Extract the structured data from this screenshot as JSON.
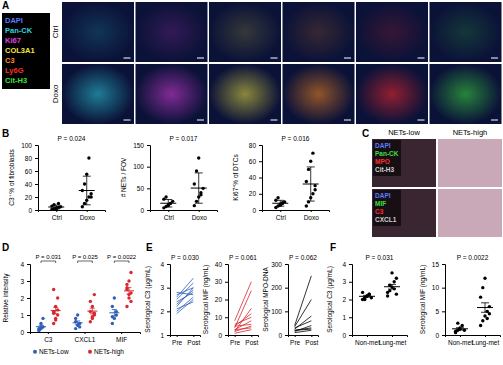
{
  "figure": {
    "panel_labels": [
      "A",
      "B",
      "C",
      "D",
      "E",
      "F"
    ],
    "panel_a": {
      "channels": [
        {
          "name": "DAPI",
          "color": "#5b7cff"
        },
        {
          "name": "Pan-CK",
          "color": "#2fd3e0"
        },
        {
          "name": "Ki67",
          "color": "#e040e0"
        },
        {
          "name": "COL3A1",
          "color": "#f2e640"
        },
        {
          "name": "C3",
          "color": "#ff8a1e"
        },
        {
          "name": "Ly6G",
          "color": "#ff2a2a"
        },
        {
          "name": "Cit-H3",
          "color": "#3de03d"
        }
      ],
      "rows": [
        "Ctrl",
        "Doxo"
      ]
    },
    "panel_c": {
      "columns": [
        "NETs-low",
        "NETs-high"
      ],
      "rows": [
        [
          {
            "name": "DAPI",
            "color": "#5b7cff"
          },
          {
            "name": "Pan-CK",
            "color": "#3de03d"
          },
          {
            "name": "MPO",
            "color": "#ff3030"
          },
          {
            "name": "Cit-H3",
            "color": "#d0d0d0"
          }
        ],
        [
          {
            "name": "DAPI",
            "color": "#5b7cff"
          },
          {
            "name": "MIF",
            "color": "#3de03d"
          },
          {
            "name": "C3",
            "color": "#ff3030"
          },
          {
            "name": "CXCL1",
            "color": "#d0d0d0"
          }
        ]
      ]
    }
  },
  "chart_data": [
    {
      "type": "dot",
      "ylabel": "C3⁺ % of fibroblasts",
      "categories": [
        "Ctrl",
        "Doxo"
      ],
      "values": [
        [
          1,
          2,
          3,
          4,
          5,
          6,
          8,
          2,
          10
        ],
        [
          5,
          10,
          15,
          20,
          25,
          30,
          40,
          55,
          80,
          20
        ]
      ],
      "means": [
        4.6,
        30
      ],
      "errors": [
        3,
        22
      ],
      "color": "#000000",
      "ylim": [
        0,
        100
      ],
      "yticks": [
        0,
        20,
        40,
        60,
        80,
        100
      ],
      "annotations": [
        {
          "text": "P = 0.024"
        }
      ]
    },
    {
      "type": "dot",
      "ylabel": "# NETs / FOV",
      "categories": [
        "Ctrl",
        "Doxo"
      ],
      "values": [
        [
          5,
          8,
          10,
          15,
          20,
          25,
          30,
          12
        ],
        [
          10,
          20,
          30,
          40,
          50,
          60,
          90,
          120,
          35
        ]
      ],
      "means": [
        15.6,
        50.6
      ],
      "errors": [
        8.7,
        35
      ],
      "color": "#000000",
      "ylim": [
        0,
        150
      ],
      "yticks": [
        0,
        50,
        100,
        150
      ],
      "annotations": [
        {
          "text": "P = 0.017"
        }
      ]
    },
    {
      "type": "dot",
      "ylabel": "Ki67⁺% of DTCs",
      "categories": [
        "Ctrl",
        "Doxo"
      ],
      "values": [
        [
          3,
          5,
          7,
          8,
          10,
          12,
          15,
          6,
          9
        ],
        [
          5,
          10,
          15,
          20,
          30,
          35,
          50,
          60,
          70,
          25
        ]
      ],
      "means": [
        8.3,
        32
      ],
      "errors": [
        3.6,
        21
      ],
      "color": "#000000",
      "ylim": [
        0,
        80
      ],
      "yticks": [
        0,
        20,
        40,
        60,
        80
      ],
      "annotations": [
        {
          "text": "P = 0.016"
        }
      ]
    },
    {
      "type": "dot",
      "ylabel": "Relative intensity",
      "categories": [
        "C3",
        "CXCL1",
        "MIF"
      ],
      "legend": "bottom",
      "series": [
        {
          "name": "NETs-Low",
          "color": "#2f5fb8",
          "values": [
            [
              0.1,
              0.2,
              0.3,
              0.2,
              0.5,
              0.8,
              0.1,
              0.3
            ],
            [
              0.2,
              0.4,
              0.5,
              0.8,
              1.0,
              0.3,
              0.6
            ],
            [
              0.5,
              0.8,
              1.0,
              1.5,
              2.0,
              1.2,
              0.9
            ]
          ],
          "means": [
            0.31,
            0.54,
            1.13
          ],
          "errors": [
            0.09,
            0.11,
            0.19
          ]
        },
        {
          "name": "NETs-high",
          "color": "#d8282f",
          "values": [
            [
              0.5,
              0.8,
              1.0,
              1.2,
              1.5,
              2.0,
              2.5,
              0.7,
              1.3,
              1.1
            ],
            [
              0.6,
              0.8,
              1.0,
              1.2,
              1.5,
              2.2,
              1.8,
              0.9,
              1.1
            ],
            [
              1.5,
              2.0,
              2.3,
              2.6,
              3.0,
              3.5,
              2.8,
              2.2,
              1.8,
              2.5
            ]
          ],
          "means": [
            1.26,
            1.23,
            2.42
          ],
          "errors": [
            0.19,
            0.17,
            0.19
          ]
        }
      ],
      "ylim": [
        0,
        4
      ],
      "yticks": [
        0,
        1,
        2,
        3,
        4
      ],
      "annotations": [
        {
          "text": "P = 0.031"
        },
        {
          "text": "P = 0.025"
        },
        {
          "text": "P = 0.0022"
        }
      ]
    },
    {
      "type": "line",
      "ylabel": "Serological C3 (μg/mL)",
      "categories": [
        "Pre",
        "Post"
      ],
      "color": "#2f5fb8",
      "values": [
        [
          2.0,
          2.6
        ],
        [
          2.2,
          3.0
        ],
        [
          2.4,
          2.8
        ],
        [
          2.5,
          3.2
        ],
        [
          2.1,
          2.4
        ],
        [
          2.7,
          3.0
        ],
        [
          2.3,
          2.9
        ],
        [
          2.6,
          3.4
        ],
        [
          1.9,
          2.5
        ],
        [
          2.8,
          2.7
        ]
      ],
      "ylim": [
        1,
        4
      ],
      "yticks": [
        1,
        2,
        3,
        4
      ],
      "annotations": [
        {
          "text": "P = 0.030"
        }
      ]
    },
    {
      "type": "line",
      "ylabel": "Serological MIF (ng/mL)",
      "categories": [
        "Pre",
        "Post"
      ],
      "color": "#d8282f",
      "values": [
        [
          2,
          5
        ],
        [
          3,
          8
        ],
        [
          5,
          12
        ],
        [
          1,
          3
        ],
        [
          4,
          25
        ],
        [
          6,
          10
        ],
        [
          2,
          15
        ],
        [
          8,
          30
        ],
        [
          3,
          4
        ],
        [
          5,
          6
        ]
      ],
      "ylim": [
        0,
        40
      ],
      "yticks": [
        0,
        10,
        20,
        30,
        40
      ],
      "annotations": [
        {
          "text": "P = 0.061"
        }
      ]
    },
    {
      "type": "line",
      "ylabel": "Serological MPO-DNA",
      "categories": [
        "Pre",
        "Post"
      ],
      "color": "#000000",
      "values": [
        [
          20,
          30
        ],
        [
          30,
          60
        ],
        [
          15,
          40
        ],
        [
          40,
          250
        ],
        [
          25,
          80
        ],
        [
          10,
          20
        ],
        [
          35,
          150
        ],
        [
          20,
          25
        ]
      ],
      "ylim": [
        0,
        300
      ],
      "yticks": [
        0,
        100,
        200,
        300
      ],
      "annotations": [
        {
          "text": "P = 0.062"
        }
      ]
    },
    {
      "type": "dot",
      "ylabel": "Serological C3 (μg/mL)",
      "categories": [
        "Non-met",
        "Lung-met"
      ],
      "values": [
        [
          2.0,
          2.1,
          2.2,
          2.3,
          2.1,
          2.4,
          2.0,
          2.2,
          2.3
        ],
        [
          2.2,
          2.5,
          2.7,
          3.0,
          3.2,
          2.4,
          2.8,
          3.5,
          2.6,
          2.3
        ]
      ],
      "means": [
        2.18,
        2.72
      ],
      "errors": [
        0.05,
        0.13
      ],
      "color": "#000000",
      "ylim": [
        0,
        4
      ],
      "yticks": [
        0,
        1,
        2,
        3,
        4
      ],
      "annotations": [
        {
          "text": "P = 0.031"
        }
      ]
    },
    {
      "type": "dot",
      "ylabel": "Serological MIF (ng/mL)",
      "categories": [
        "Non-met",
        "Lung-met"
      ],
      "values": [
        [
          0.5,
          1,
          1.5,
          2,
          1,
          0.8,
          2.5,
          1.2
        ],
        [
          2,
          3,
          4,
          5,
          6,
          8,
          10,
          12,
          3.5,
          4.5
        ]
      ],
      "means": [
        1.31,
        5.8
      ],
      "errors": [
        0.23,
        1.0
      ],
      "color": "#000000",
      "ylim": [
        0,
        15
      ],
      "yticks": [
        0,
        5,
        10,
        15
      ],
      "annotations": [
        {
          "text": "P = 0.0022"
        }
      ]
    }
  ]
}
